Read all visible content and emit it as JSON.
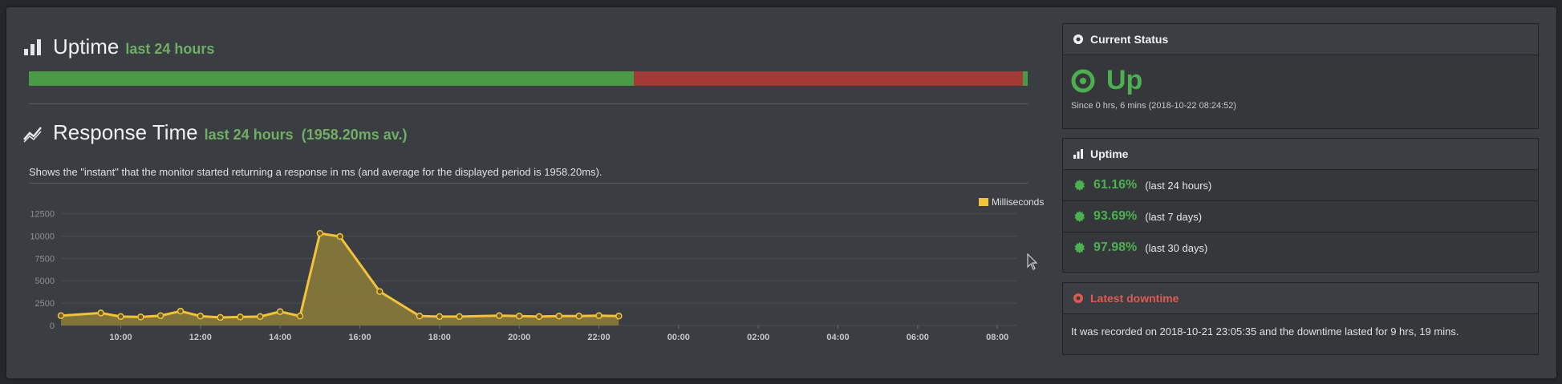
{
  "uptime_section": {
    "title": "Uptime",
    "subtitle": "last 24 hours",
    "segments": [
      {
        "fraction": 0.606,
        "color": "#4a9a48"
      },
      {
        "fraction": 0.389,
        "color": "#a23a36"
      },
      {
        "fraction": 0.005,
        "color": "#4a9a48"
      }
    ]
  },
  "response_section": {
    "title": "Response Time",
    "subtitle": "last 24 hours",
    "average": "(1958.20ms av.)",
    "description": "Shows the \"instant\" that the monitor started returning a response in ms (and average for the displayed period is 1958.20ms)."
  },
  "chart_data": {
    "type": "area",
    "legend": {
      "label": "Milliseconds",
      "position": "top-right"
    },
    "x_start": "08:30",
    "x_end": "08:30 next day",
    "x_ticks": [
      "10:00",
      "12:00",
      "14:00",
      "16:00",
      "18:00",
      "20:00",
      "22:00",
      "00:00",
      "02:00",
      "04:00",
      "06:00",
      "08:00"
    ],
    "y_ticks": [
      "0",
      "2500",
      "5000",
      "7500",
      "10000",
      "12500"
    ],
    "ylim": [
      0,
      13000
    ],
    "grid": true,
    "series": [
      {
        "name": "Milliseconds",
        "color": "#f2c23a",
        "points": [
          {
            "t": "08:30",
            "v": 1100
          },
          {
            "t": "09:30",
            "v": 1400
          },
          {
            "t": "10:00",
            "v": 1000
          },
          {
            "t": "10:30",
            "v": 950
          },
          {
            "t": "11:00",
            "v": 1100
          },
          {
            "t": "11:30",
            "v": 1600
          },
          {
            "t": "12:00",
            "v": 1050
          },
          {
            "t": "12:30",
            "v": 900
          },
          {
            "t": "13:00",
            "v": 950
          },
          {
            "t": "13:30",
            "v": 1000
          },
          {
            "t": "14:00",
            "v": 1550
          },
          {
            "t": "14:30",
            "v": 1050
          },
          {
            "t": "15:00",
            "v": 10300
          },
          {
            "t": "15:30",
            "v": 9950
          },
          {
            "t": "16:30",
            "v": 3800
          },
          {
            "t": "17:30",
            "v": 1050
          },
          {
            "t": "18:00",
            "v": 1000
          },
          {
            "t": "18:30",
            "v": 1000
          },
          {
            "t": "19:30",
            "v": 1100
          },
          {
            "t": "20:00",
            "v": 1050
          },
          {
            "t": "20:30",
            "v": 1000
          },
          {
            "t": "21:00",
            "v": 1050
          },
          {
            "t": "21:30",
            "v": 1050
          },
          {
            "t": "22:00",
            "v": 1100
          },
          {
            "t": "22:30",
            "v": 1050
          }
        ]
      }
    ]
  },
  "current_status": {
    "header": "Current Status",
    "state": "Up",
    "since": "Since 0 hrs, 6 mins (2018-10-22 08:24:52)"
  },
  "uptime_panel": {
    "header": "Uptime",
    "rows": [
      {
        "pct": "61.16%",
        "period": "(last 24 hours)"
      },
      {
        "pct": "93.69%",
        "period": "(last 7 days)"
      },
      {
        "pct": "97.98%",
        "period": "(last 30 days)"
      }
    ]
  },
  "latest_downtime": {
    "header": "Latest downtime",
    "text": "It was recorded on 2018-10-21 23:05:35 and the downtime lasted for 9 hrs, 19 mins."
  }
}
